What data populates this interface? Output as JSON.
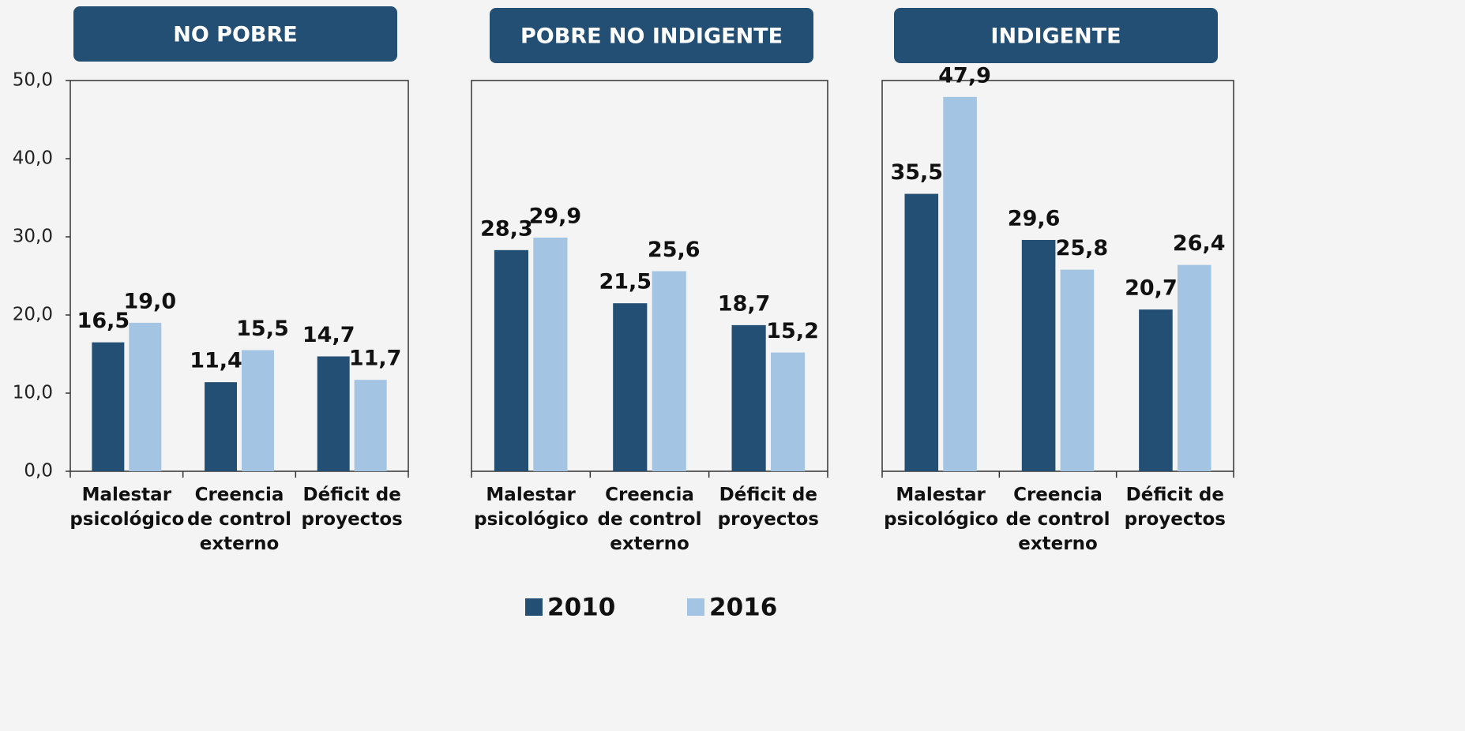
{
  "chart_data": [
    {
      "type": "bar",
      "title": "NO POBRE",
      "categories": [
        "Malestar psicológico",
        "Creencia de control externo",
        "Déficit de proyectos"
      ],
      "series": [
        {
          "name": "2010",
          "color": "#244f75",
          "values": [
            16.5,
            11.4,
            14.7
          ],
          "value_labels": [
            "16,5",
            "11,4",
            "14,7"
          ]
        },
        {
          "name": "2016",
          "color": "#a3c4e2",
          "values": [
            19.0,
            15.5,
            11.7
          ],
          "value_labels": [
            "19,0",
            "15,5",
            "11,7"
          ]
        }
      ],
      "ylim": [
        0,
        50
      ],
      "yticks": [
        {
          "value": 0,
          "label": "0,0"
        },
        {
          "value": 10,
          "label": "10,0"
        },
        {
          "value": 20,
          "label": "20,0"
        },
        {
          "value": 30,
          "label": "30,0"
        },
        {
          "value": 40,
          "label": "40,0"
        },
        {
          "value": 50,
          "label": "50,0"
        }
      ],
      "legend": "bottom"
    },
    {
      "type": "bar",
      "title": "POBRE NO INDIGENTE",
      "categories": [
        "Malestar psicológico",
        "Creencia de control externo",
        "Déficit de proyectos"
      ],
      "series": [
        {
          "color": "#244f75",
          "values": [
            28.3,
            21.5,
            18.7
          ],
          "value_labels": [
            "28,3",
            "21,5",
            "18,7"
          ]
        },
        {
          "color": "#a3c4e2",
          "values": [
            29.9,
            25.6,
            15.2
          ],
          "value_labels": [
            "29,9",
            "25,6",
            "15,2"
          ]
        }
      ],
      "ylim": [
        0,
        50
      ]
    },
    {
      "type": "bar",
      "title": "INDIGENTE",
      "categories": [
        "Malestar psicológico",
        "Creencia de control externo",
        "Déficit de proyectos"
      ],
      "series": [
        {
          "color": "#244f75",
          "values": [
            35.5,
            29.6,
            20.7
          ],
          "value_labels": [
            "35,5",
            "29,6",
            "20,7"
          ]
        },
        {
          "color": "#a3c4e2",
          "values": [
            47.9,
            25.8,
            26.4
          ],
          "value_labels": [
            "47,9",
            "25,8",
            "26,4"
          ]
        }
      ],
      "ylim": [
        0,
        50
      ]
    }
  ]
}
